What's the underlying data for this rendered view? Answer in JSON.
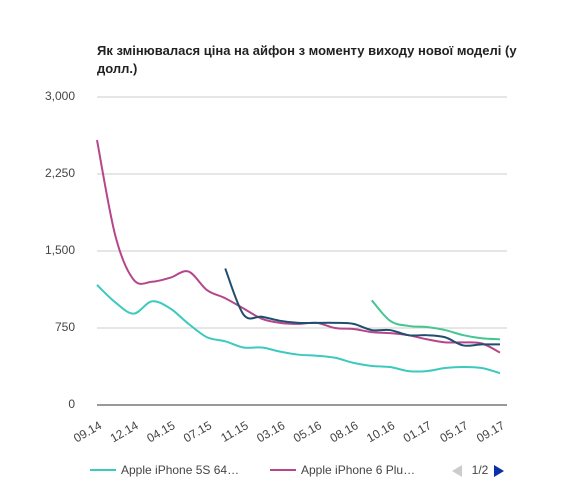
{
  "chart_data": {
    "type": "line",
    "title": "Як змінювалася ціна на айфон з моменту виходу нової моделі (у долл.)",
    "categories": [
      "09.14",
      null,
      "12.14",
      null,
      "04.15",
      null,
      "07.15",
      null,
      "11.15",
      null,
      "03.16",
      null,
      "05.16",
      null,
      "08.16",
      null,
      "10.16",
      null,
      "01.17",
      null,
      "05.17",
      null,
      "09.17"
    ],
    "series": [
      {
        "name": "Apple iPhone 5S 64…",
        "color": "#3cc9be",
        "values": [
          1170,
          1000,
          890,
          1010,
          940,
          790,
          660,
          620,
          560,
          560,
          520,
          490,
          480,
          460,
          410,
          380,
          370,
          330,
          330,
          360,
          370,
          360,
          310
        ]
      },
      {
        "name": "Apple iPhone 6 Plu…",
        "color": "#b5468b",
        "values": [
          2580,
          1650,
          1220,
          1200,
          1240,
          1300,
          1120,
          1040,
          940,
          840,
          800,
          790,
          800,
          750,
          740,
          710,
          700,
          680,
          640,
          610,
          610,
          600,
          510
        ]
      },
      {
        "color": "#1f4e6e",
        "values": [
          null,
          null,
          null,
          null,
          null,
          null,
          null,
          1330,
          880,
          860,
          820,
          800,
          800,
          800,
          790,
          730,
          730,
          680,
          680,
          660,
          580,
          590,
          590
        ]
      },
      {
        "color": "#45c58f",
        "values": [
          null,
          null,
          null,
          null,
          null,
          null,
          null,
          null,
          null,
          null,
          null,
          null,
          null,
          null,
          null,
          1020,
          820,
          770,
          760,
          730,
          680,
          650,
          640
        ]
      }
    ],
    "ylim": [
      0,
      3000
    ],
    "yticks": [
      0,
      {
        "value": 750,
        "label": "750"
      },
      {
        "value": 1500,
        "label": "1,500"
      },
      {
        "value": 2250,
        "label": "2,250"
      },
      {
        "value": 3000,
        "label": "3,000"
      }
    ],
    "grid": true,
    "legend": "bottom",
    "legend_page": "1/2"
  }
}
